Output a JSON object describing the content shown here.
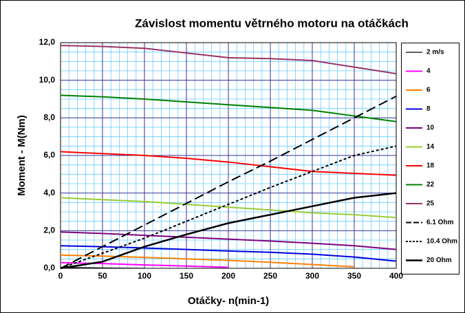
{
  "chart_data": {
    "type": "line",
    "title": "Závislost momentu větrného motoru na otáčkách",
    "x_label": "Otáčky- n(min-1)",
    "y_label": "Moment - M(Nm)",
    "x": [
      0,
      50,
      100,
      150,
      200,
      250,
      300,
      350,
      400
    ],
    "xlim": [
      0,
      400
    ],
    "xticks": [
      0,
      50,
      100,
      150,
      200,
      250,
      300,
      350,
      400
    ],
    "ylim": [
      0,
      12
    ],
    "yticks": [
      {
        "value": 0,
        "label": "0,0"
      },
      {
        "value": 2,
        "label": "2,0"
      },
      {
        "value": 4,
        "label": "4,0"
      },
      {
        "value": 6,
        "label": "6,0"
      },
      {
        "value": 8,
        "label": "8,0"
      },
      {
        "value": 10,
        "label": "10,0"
      },
      {
        "value": 12,
        "label": "12,0"
      }
    ],
    "grid": true,
    "legend": "right",
    "series": [
      {
        "name": "2 m/s",
        "color": "#000000",
        "values": [
          0.05,
          0.02,
          0.0,
          null,
          null,
          null,
          null,
          null,
          null
        ]
      },
      {
        "name": "4",
        "color": "#ff00ff",
        "values": [
          0.3,
          0.25,
          0.18,
          0.12,
          0.05,
          null,
          null,
          null,
          null
        ]
      },
      {
        "name": "6",
        "color": "#ff8000",
        "values": [
          0.7,
          0.65,
          0.58,
          0.5,
          0.42,
          0.32,
          0.2,
          0.08,
          null
        ]
      },
      {
        "name": "8",
        "color": "#0000e0",
        "values": [
          1.2,
          1.15,
          1.08,
          1.0,
          0.92,
          0.85,
          0.75,
          0.6,
          0.38
        ]
      },
      {
        "name": "10",
        "color": "#800080",
        "values": [
          1.93,
          1.85,
          1.75,
          1.65,
          1.55,
          1.45,
          1.33,
          1.2,
          1.0
        ]
      },
      {
        "name": "14",
        "color": "#99cc33",
        "values": [
          3.75,
          3.65,
          3.55,
          3.4,
          3.25,
          3.1,
          2.95,
          2.85,
          2.7
        ]
      },
      {
        "name": "18",
        "color": "#ff0000",
        "values": [
          6.2,
          6.1,
          6.0,
          5.85,
          5.65,
          5.4,
          5.15,
          5.05,
          4.95
        ]
      },
      {
        "name": "22",
        "color": "#008000",
        "values": [
          9.2,
          9.12,
          9.0,
          8.85,
          8.7,
          8.55,
          8.4,
          8.1,
          7.8
        ]
      },
      {
        "name": "25",
        "color": "#993366",
        "values": [
          11.85,
          11.8,
          11.7,
          11.45,
          11.2,
          11.15,
          11.05,
          10.7,
          10.35
        ]
      },
      {
        "name": "6.1 Ohm",
        "color": "#000000",
        "dash": "dashed",
        "values": [
          0,
          1.15,
          2.3,
          3.45,
          4.6,
          5.7,
          6.85,
          8.0,
          9.15
        ]
      },
      {
        "name": "10.4 Ohm",
        "color": "#000000",
        "dash": "dotted",
        "values": [
          0,
          0.8,
          1.6,
          2.5,
          3.4,
          4.3,
          5.15,
          6.0,
          6.5
        ]
      },
      {
        "name": "20 Ohm",
        "color": "#000000",
        "values": [
          0,
          0.35,
          1.15,
          1.8,
          2.4,
          2.85,
          3.3,
          3.75,
          4.0
        ]
      }
    ]
  }
}
